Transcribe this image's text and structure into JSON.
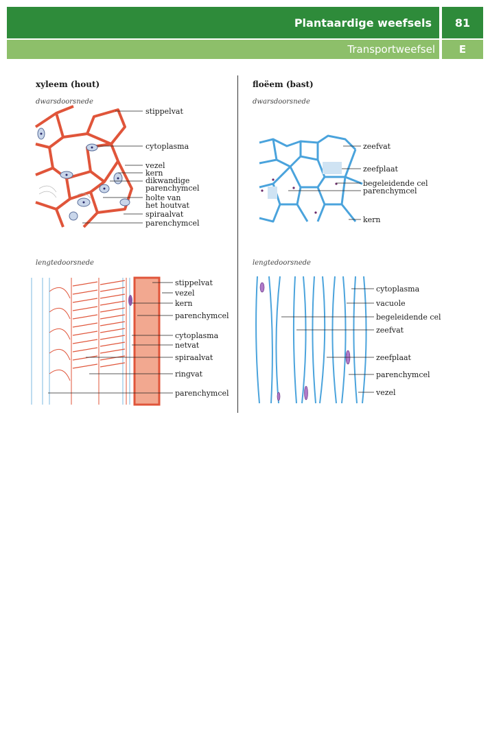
{
  "header": {
    "title": "Plantaardige weefsels",
    "subtitle": "Transportweefsel",
    "page_number": "81",
    "section_letter": "E",
    "colors": {
      "dark": "#2e8b3a",
      "light": "#8dbf6a"
    }
  },
  "xylem": {
    "heading": "xyleem (hout)",
    "cross": {
      "subtitle": "dwarsdoorsnede",
      "labels": [
        "stippelvat",
        "cytoplasma",
        "vezel",
        "kern",
        "dikwandige",
        "parenchymcel",
        "holte van",
        "het houtvat",
        "spiraalvat",
        "parenchymcel"
      ]
    },
    "long": {
      "subtitle": "lengtedoorsnede",
      "labels": [
        "stippelvat",
        "vezel",
        "kern",
        "parenchymcel",
        "cytoplasma",
        "netvat",
        "spiraalvat",
        "ringvat",
        "parenchymcel"
      ]
    },
    "color": "#e0553a"
  },
  "phloem": {
    "heading": "floëem (bast)",
    "cross": {
      "subtitle": "dwarsdoorsnede",
      "labels": [
        "zeefvat",
        "zeefplaat",
        "begeleidende cel",
        "parenchymcel",
        "kern"
      ]
    },
    "long": {
      "subtitle": "lengtedoorsnede",
      "labels": [
        "cytoplasma",
        "vacuole",
        "begeleidende cel",
        "zeefvat",
        "zeefplaat",
        "parenchymcel",
        "vezel"
      ]
    },
    "color": "#4aa3dc"
  }
}
